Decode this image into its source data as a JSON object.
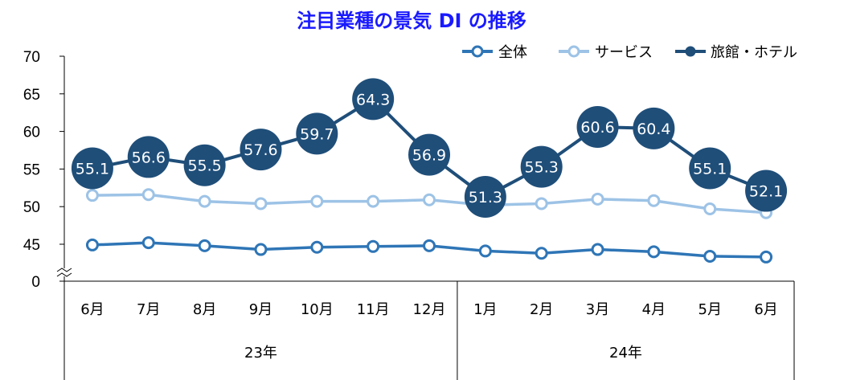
{
  "chart_data": {
    "type": "line",
    "title": "注目業種の景気 DI の推移",
    "categories": [
      "6月",
      "7月",
      "8月",
      "9月",
      "10月",
      "11月",
      "12月",
      "1月",
      "2月",
      "3月",
      "4月",
      "5月",
      "6月"
    ],
    "year_groups": [
      {
        "label": "23年",
        "start": 0,
        "end": 6
      },
      {
        "label": "24年",
        "start": 7,
        "end": 12
      }
    ],
    "y_ticks": [
      "0",
      "45",
      "50",
      "55",
      "60",
      "65",
      "70"
    ],
    "ylim": [
      40,
      70
    ],
    "axis_break": true,
    "legend_position": "top-right",
    "series": [
      {
        "name": "全体",
        "color": "#2e75b6",
        "values": [
          44.9,
          45.2,
          44.8,
          44.3,
          44.6,
          44.7,
          44.8,
          44.1,
          43.8,
          44.3,
          44.0,
          43.4,
          43.3
        ]
      },
      {
        "name": "サービス",
        "color": "#9dc3e6",
        "values": [
          51.5,
          51.6,
          50.7,
          50.4,
          50.7,
          50.7,
          50.9,
          50.2,
          50.4,
          51.0,
          50.8,
          49.7,
          49.2
        ]
      },
      {
        "name": "旅館・ホテル",
        "color": "#1f4e79",
        "values": [
          55.1,
          56.6,
          55.5,
          57.6,
          59.7,
          64.3,
          56.9,
          51.3,
          55.3,
          60.6,
          60.4,
          55.1,
          52.1
        ],
        "labels": [
          "55.1",
          "56.6",
          "55.5",
          "57.6",
          "59.7",
          "64.3",
          "56.9",
          "51.3",
          "55.3",
          "60.6",
          "60.4",
          "55.1",
          "52.1"
        ]
      }
    ]
  }
}
